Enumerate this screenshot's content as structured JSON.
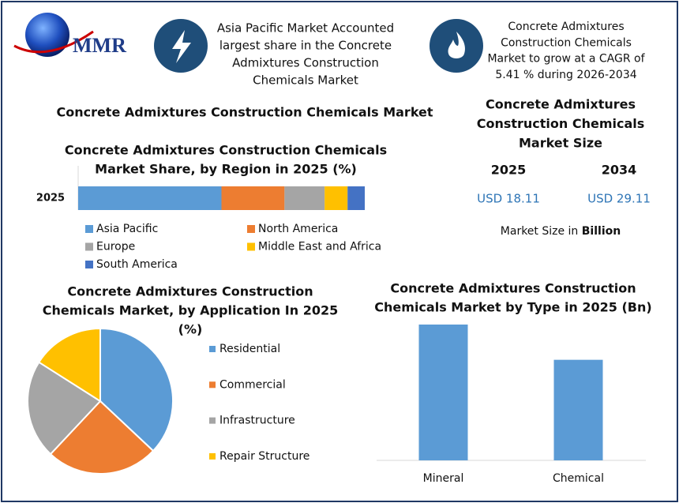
{
  "header": {
    "logo": "MMR",
    "fact_left": [
      "Asia Pacific Market Accounted",
      "largest share in the Concrete",
      "Admixtures Construction",
      "Chemicals Market"
    ],
    "fact_right": [
      "Concrete Admixtures",
      "Construction Chemicals",
      "Market to grow at a CAGR of",
      "5.41 % during 2026-2034"
    ]
  },
  "page_title": "Concrete Admixtures Construction Chemicals Market",
  "market_size": {
    "title": [
      "Concrete Admixtures",
      "Construction Chemicals",
      "Market Size"
    ],
    "years": [
      "2025",
      "2034"
    ],
    "values": [
      "USD 18.11",
      "USD 29.11"
    ],
    "note": "Market Size in",
    "note_unit": "Billion"
  },
  "chart_data": [
    {
      "type": "stacked-bar",
      "title": [
        "Concrete Admixtures Construction Chemicals",
        "Market Share, by Region in 2025 (%)"
      ],
      "categories": [
        "2025"
      ],
      "series": [
        {
          "name": "Asia Pacific",
          "color": "#5b9bd5",
          "values": [
            50
          ]
        },
        {
          "name": "North America",
          "color": "#ed7d31",
          "values": [
            22
          ]
        },
        {
          "name": "Europe",
          "color": "#a5a5a5",
          "values": [
            14
          ]
        },
        {
          "name": "Middle East and Africa",
          "color": "#ffc000",
          "values": [
            8
          ]
        },
        {
          "name": "South America",
          "color": "#4472c4",
          "values": [
            6
          ]
        }
      ]
    },
    {
      "type": "pie",
      "title": [
        "Concrete Admixtures Construction",
        "Chemicals Market, by Application In 2025",
        "(%)"
      ],
      "categories": [
        "Residential",
        "Commercial",
        "Infrastructure",
        "Repair Structure"
      ],
      "values": [
        37,
        25,
        22,
        16
      ],
      "colors": [
        "#5b9bd5",
        "#ed7d31",
        "#a5a5a5",
        "#ffc000"
      ]
    },
    {
      "type": "bar",
      "title": [
        "Concrete Admixtures Construction",
        "Chemicals Market by Type in 2025 (Bn)"
      ],
      "categories": [
        "Mineral",
        "Chemical"
      ],
      "values": [
        10.4,
        7.7
      ],
      "color": "#5b9bd5"
    }
  ]
}
